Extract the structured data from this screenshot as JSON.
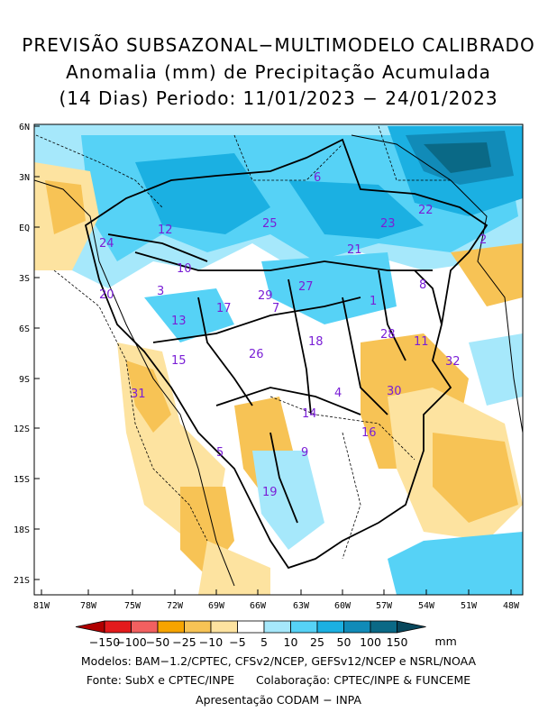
{
  "title": {
    "line1": "PREVISÃO SUBSAZONAL−MULTIMODELO CALIBRADO",
    "line2": "Anomalia (mm) de Precipitação Acumulada",
    "line3": "(14 Dias) Periodo: 11/01/2023 − 24/01/2023"
  },
  "axes": {
    "lat_ticks": [
      "6N",
      "3N",
      "EQ",
      "3S",
      "6S",
      "9S",
      "12S",
      "15S",
      "18S",
      "21S"
    ],
    "lon_ticks": [
      "81W",
      "78W",
      "75W",
      "72W",
      "69W",
      "66W",
      "63W",
      "60W",
      "57W",
      "54W",
      "51W",
      "48W"
    ]
  },
  "basins": [
    "1",
    "2",
    "3",
    "4",
    "5",
    "6",
    "7",
    "8",
    "9",
    "10",
    "11",
    "12",
    "13",
    "14",
    "15",
    "16",
    "17",
    "18",
    "19",
    "20",
    "21",
    "22",
    "23",
    "24",
    "25",
    "26",
    "27",
    "28",
    "29",
    "30",
    "31",
    "32"
  ],
  "colorbar": {
    "labels": [
      "−150",
      "−100",
      "−50",
      "−25",
      "−10",
      "−5",
      "5",
      "10",
      "25",
      "50",
      "100",
      "150"
    ],
    "unit": "mm",
    "colors": [
      "#b00000",
      "#e31a1c",
      "#f26060",
      "#f6a400",
      "#f7c355",
      "#fde3a0",
      "#ffffff",
      "#a6e8fb",
      "#56d2f6",
      "#1bb0e2",
      "#118bb8",
      "#0a6986",
      "#08475c"
    ]
  },
  "footer": {
    "line1": "Modelos: BAM−1.2/CPTEC, CFSv2/NCEP, GEFSv12/NCEP e NSRL/NOAA",
    "line2": "Fonte: SubX e CPTEC/INPE      Colaboração: CPTEC/INPE & FUNCEME",
    "line3": "Apresentação CODAM − INPA"
  }
}
